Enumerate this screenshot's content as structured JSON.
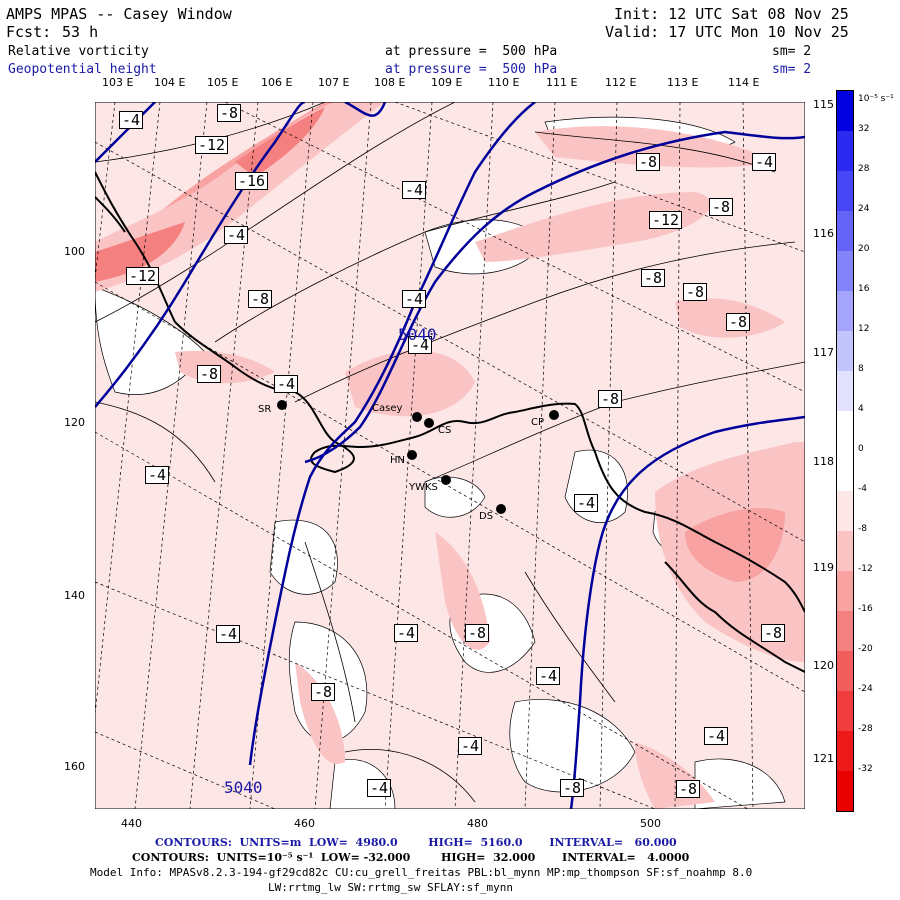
{
  "header": {
    "title": "AMPS MPAS -- Casey Window",
    "init": "Init: 12 UTC Sat 08 Nov 25",
    "fcst_label": "Fcst:",
    "fcst_value": "53 h",
    "valid": "Valid: 17 UTC Mon 10 Nov 25",
    "field1": {
      "name": "Relative vorticity",
      "pressure": "at pressure =  500 hPa",
      "sm": "sm= 2"
    },
    "field2": {
      "name": "Geopotential height",
      "pressure": "at pressure =  500 hPa",
      "sm": "sm= 2"
    }
  },
  "top_lon_labels": [
    "103 E",
    "104 E",
    "105 E",
    "106 E",
    "107 E",
    "108 E",
    "109 E",
    "110 E",
    "111 E",
    "112 E",
    "113 E",
    "114 E"
  ],
  "right_lat_labels": [
    "115 E",
    "116 E",
    "117 E",
    "118 E",
    "119 E",
    "120 E",
    "121 E"
  ],
  "left_axis_labels": [
    "100",
    "120",
    "140",
    "160"
  ],
  "bottom_axis_labels": [
    "440",
    "460",
    "480",
    "500"
  ],
  "colorbar": {
    "units": "10⁻⁵ s⁻¹",
    "ticks": [
      "32",
      "28",
      "24",
      "20",
      "16",
      "12",
      "8",
      "4",
      "0",
      "-4",
      "-8",
      "-12",
      "-16",
      "-20",
      "-24",
      "-28",
      "-32"
    ],
    "colors": [
      "#0000e0",
      "#2a2af0",
      "#4646f5",
      "#6464f8",
      "#8484fa",
      "#a4a4fc",
      "#c4c4fd",
      "#e2e2fe",
      "#ffffff",
      "#ffffff",
      "#fde6e6",
      "#fbc4c4",
      "#f8a2a2",
      "#f58080",
      "#f25e5e",
      "#ef3c3c",
      "#ec1a1a",
      "#e80000"
    ]
  },
  "contour_labels": [
    "-4",
    "-8",
    "-12",
    "-16",
    "-4",
    "-12",
    "-8",
    "-4",
    "-8",
    "-4",
    "-8",
    "-12",
    "-8",
    "-8",
    "-8",
    "-4",
    "-8",
    "-4",
    "-4",
    "-8",
    "-4",
    "-4",
    "-8",
    "-4",
    "-8",
    "-4",
    "-4",
    "-8",
    "-4",
    "-4",
    "-8",
    "-4",
    "-8"
  ],
  "height_labels": [
    "5040",
    "5040"
  ],
  "stations": [
    "SR",
    "Casey",
    "CS",
    "CP",
    "HN",
    "YWKS",
    "DS"
  ],
  "footer": {
    "line1": "CONTOURS:  UNITS=m  LOW=  4980.0        HIGH=  5160.0       INTERVAL=   60.000",
    "line2": "CONTOURS:  UNITS=10⁻⁵ s⁻¹  LOW= -32.000        HIGH=  32.000       INTERVAL=   4.0000",
    "line3": "Model Info: MPASv8.2.3-194-gf29cd82c CU:cu_grell_freitas PBL:bl_mynn MP:mp_thompson SF:sf_noahmp 8.0",
    "line4": "LW:rrtmg_lw SW:rrtmg_sw SFLAY:sf_mynn"
  }
}
